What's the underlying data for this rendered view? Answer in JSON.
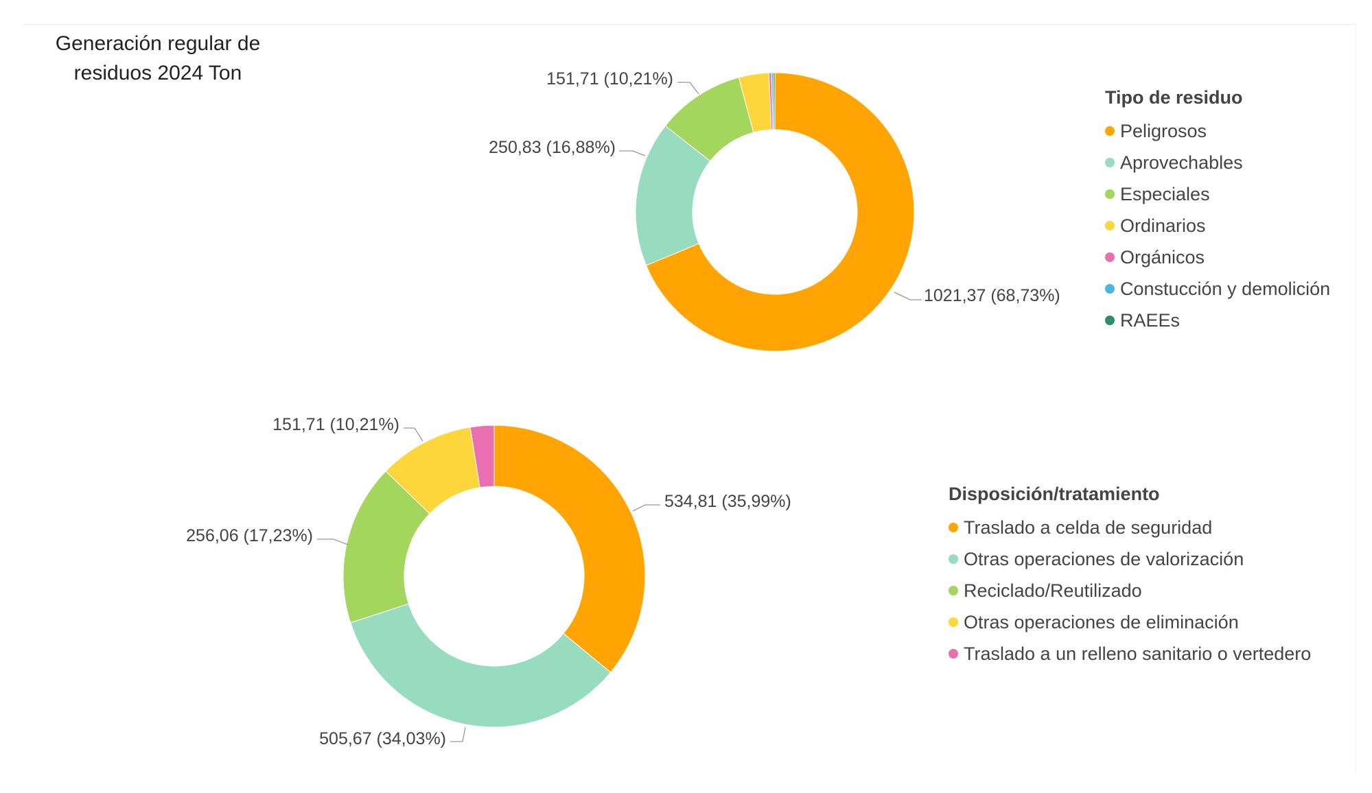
{
  "title": "Generación regular de\nresiduos 2024 Ton",
  "chart_data": [
    {
      "type": "pie",
      "variant": "donut",
      "legend_title": "Tipo de residuo",
      "legend_position": "right",
      "categories": [
        "Peligrosos",
        "Aprovechables",
        "Especiales",
        "Ordinarios",
        "Orgánicos",
        "Constucción y demolición",
        "RAEEs"
      ],
      "values": [
        1021.37,
        250.83,
        151.71,
        52.0,
        4.3,
        3.0,
        2.8
      ],
      "colors": [
        "#FFA400",
        "#98DCC0",
        "#A4D65E",
        "#FDD63C",
        "#E96FB0",
        "#4AB7E0",
        "#2E8B6B"
      ],
      "data_labels": [
        "1021,37 (68,73%)",
        "250,83 (16,88%)",
        "151,71 (10,21%)",
        null,
        null,
        null,
        null
      ]
    },
    {
      "type": "pie",
      "variant": "donut",
      "legend_title": "Disposición/tratamiento",
      "legend_position": "right",
      "categories": [
        "Traslado a celda de seguridad",
        "Otras operaciones de valorización",
        "Reciclado/Reutilizado",
        "Otras operaciones de eliminación",
        "Traslado a un relleno sanitario o vertedero"
      ],
      "values": [
        534.81,
        505.67,
        256.06,
        151.71,
        37.7
      ],
      "colors": [
        "#FFA400",
        "#98DCC0",
        "#A4D65E",
        "#FDD63C",
        "#E96FB0"
      ],
      "data_labels": [
        "534,81 (35,99%)",
        "505,67 (34,03%)",
        "256,06 (17,23%)",
        "151,71 (10,21%)",
        null
      ]
    }
  ]
}
